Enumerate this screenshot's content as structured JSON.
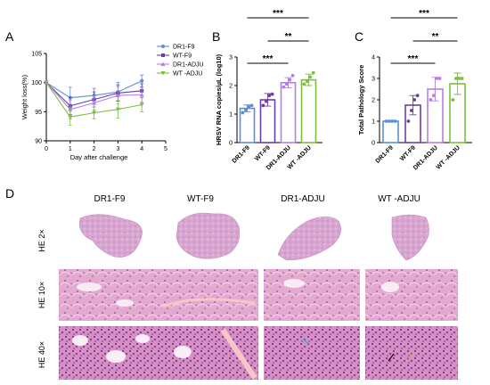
{
  "colors": {
    "dr1_f9": "#5b8fd6",
    "wt_f9": "#6a3fa8",
    "dr1_adju": "#b57ee6",
    "wt_adju": "#7cbf3c",
    "sig": "#000000"
  },
  "chart_data": [
    {
      "panel": "A",
      "type": "line",
      "xlabel": "Day after challenge",
      "ylabel": "Weight loss(%)",
      "xlim": [
        0,
        5
      ],
      "ylim": [
        90,
        105
      ],
      "xticks": [
        0,
        1,
        2,
        3,
        4,
        5
      ],
      "yticks": [
        90,
        95,
        100,
        105
      ],
      "x": [
        0,
        1,
        2,
        3,
        4
      ],
      "legend": "top-right",
      "series": [
        {
          "name": "DR1-F9",
          "color": "#5b8fd6",
          "marker": "circle",
          "values": [
            100,
            97.4,
            97.8,
            98.4,
            100.3
          ],
          "err": [
            0,
            1.8,
            1.2,
            1.6,
            1.0
          ]
        },
        {
          "name": "WT-F9",
          "color": "#6a3fa8",
          "marker": "square",
          "values": [
            100,
            96.0,
            97.1,
            98.2,
            98.6
          ],
          "err": [
            0,
            1.5,
            1.3,
            1.4,
            1.2
          ]
        },
        {
          "name": "DR1-ADJU",
          "color": "#b57ee6",
          "marker": "triangle",
          "values": [
            100,
            95.4,
            96.5,
            97.8,
            97.9
          ],
          "err": [
            0,
            1.6,
            1.2,
            1.5,
            1.3
          ]
        },
        {
          "name": "WT -ADJU",
          "color": "#7cbf3c",
          "marker": "triangle-down",
          "values": [
            100,
            94.1,
            94.8,
            95.4,
            96.2
          ],
          "err": [
            0,
            1.4,
            1.0,
            1.5,
            1.2
          ]
        }
      ]
    },
    {
      "panel": "B",
      "type": "bar",
      "ylabel": "HRSV RNA copies/µL (log10)",
      "ylim": [
        0,
        3
      ],
      "yticks": [
        0,
        1,
        2,
        3
      ],
      "categories": [
        "DR1-F9",
        "WT-F9",
        "DR1-ADJU",
        "WT -ADJU"
      ],
      "values": [
        1.2,
        1.5,
        2.1,
        2.2
      ],
      "err": [
        0.12,
        0.22,
        0.18,
        0.2
      ],
      "points": [
        [
          1.05,
          1.15,
          1.25,
          1.3
        ],
        [
          1.3,
          1.45,
          1.65,
          1.7
        ],
        [
          1.95,
          2.05,
          2.2,
          2.35
        ],
        [
          2.05,
          2.15,
          2.3,
          2.45
        ]
      ],
      "colors": [
        "#5b8fd6",
        "#6a3fa8",
        "#b57ee6",
        "#7cbf3c"
      ],
      "significance": [
        {
          "from": 0,
          "to": 3,
          "label": "***"
        },
        {
          "from": 1,
          "to": 3,
          "label": "**"
        },
        {
          "from": 0,
          "to": 2,
          "label": "***"
        }
      ]
    },
    {
      "panel": "C",
      "type": "bar",
      "ylabel": "Total Pathology Score",
      "ylim": [
        0,
        4
      ],
      "yticks": [
        0,
        1,
        2,
        3,
        4
      ],
      "categories": [
        "DR1-F9",
        "WT-F9",
        "DR1-ADJU",
        "WT -ADJU"
      ],
      "values": [
        1.0,
        1.75,
        2.5,
        2.75
      ],
      "err": [
        0.0,
        0.45,
        0.55,
        0.5
      ],
      "points": [
        [
          1.0,
          1.0,
          1.0,
          1.0
        ],
        [
          1.0,
          1.5,
          2.0,
          2.2
        ],
        [
          2.0,
          2.2,
          3.0,
          3.0
        ],
        [
          2.0,
          3.0,
          3.0,
          3.0
        ]
      ],
      "colors": [
        "#5b8fd6",
        "#6a3fa8",
        "#b57ee6",
        "#7cbf3c"
      ],
      "significance": [
        {
          "from": 0,
          "to": 3,
          "label": "***"
        },
        {
          "from": 1,
          "to": 3,
          "label": "**"
        },
        {
          "from": 0,
          "to": 2,
          "label": "***"
        }
      ]
    }
  ],
  "panel_labels": {
    "a": "A",
    "b": "B",
    "c": "C",
    "d": "D"
  },
  "histology": {
    "columns": [
      "DR1-F9",
      "WT-F9",
      "DR1-ADJU",
      "WT -ADJU"
    ],
    "rows": [
      "HE 2×",
      "HE 10×",
      "HE 40×"
    ]
  }
}
